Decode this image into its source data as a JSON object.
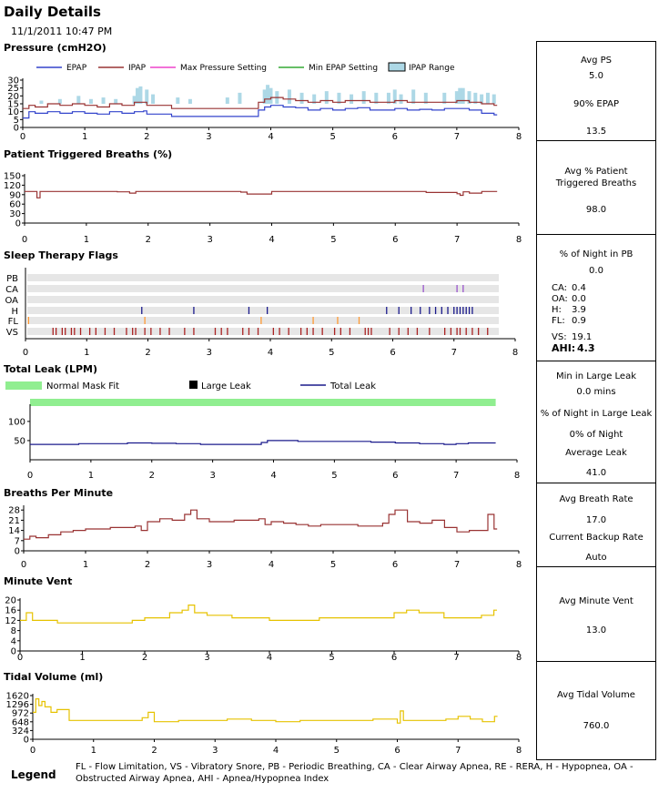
{
  "header": {
    "title": "Daily Details",
    "datetime": "11/1/2011 10:47 PM"
  },
  "chart_data": [
    {
      "id": "pressure",
      "type": "line",
      "title": "Pressure (cmH2O)",
      "x_ticks": [
        "0",
        "1",
        "2",
        "3",
        "4",
        "5",
        "6",
        "7",
        "8"
      ],
      "xlim": [
        0,
        8
      ],
      "y_ticks": [
        "30",
        "25",
        "20",
        "15",
        "10",
        "5",
        "0"
      ],
      "ylim": [
        0,
        30
      ],
      "legend": [
        "EPAP",
        "IPAP",
        "Max Pressure Setting",
        "Min EPAP Setting",
        "IPAP Range"
      ],
      "series": [
        {
          "name": "EPAP",
          "color": "#3344cc",
          "x": [
            0,
            0.1,
            0.2,
            0.4,
            0.6,
            0.8,
            1.0,
            1.2,
            1.4,
            1.6,
            1.8,
            1.95,
            2.0,
            2.4,
            2.8,
            3.2,
            3.6,
            3.8,
            3.9,
            4.0,
            4.2,
            4.4,
            4.6,
            4.8,
            5.0,
            5.2,
            5.4,
            5.6,
            5.8,
            6.0,
            6.2,
            6.4,
            6.6,
            6.8,
            7.0,
            7.2,
            7.4,
            7.6
          ],
          "values": [
            6,
            10,
            9,
            10,
            9,
            10,
            9,
            8.5,
            10,
            9,
            10,
            10.5,
            8.5,
            7,
            7,
            7,
            7,
            11,
            13,
            14,
            13,
            12.5,
            11,
            12,
            11,
            12,
            12.5,
            11,
            11,
            12,
            11,
            11.5,
            11,
            12,
            12,
            11,
            9,
            8
          ]
        },
        {
          "name": "IPAP",
          "color": "#993333",
          "x": [
            0,
            0.1,
            0.2,
            0.4,
            0.6,
            0.8,
            1.0,
            1.2,
            1.4,
            1.6,
            1.8,
            1.95,
            2.0,
            2.4,
            2.8,
            3.2,
            3.6,
            3.8,
            3.9,
            4.0,
            4.2,
            4.4,
            4.6,
            4.8,
            5.0,
            5.2,
            5.4,
            5.6,
            5.8,
            6.0,
            6.2,
            6.4,
            6.6,
            6.8,
            7.0,
            7.2,
            7.4,
            7.6
          ],
          "values": [
            12,
            14,
            13,
            15,
            14,
            15,
            14,
            13,
            15,
            14,
            16,
            16,
            14,
            12,
            12,
            12,
            12,
            16,
            18,
            19,
            18,
            17,
            16,
            17,
            16,
            17,
            17,
            16,
            16,
            17,
            16,
            16,
            16,
            16,
            17,
            16,
            15,
            14
          ]
        },
        {
          "name": "IPAP Range",
          "color": "#add8e6",
          "x": [
            0.3,
            0.6,
            0.9,
            1.1,
            1.3,
            1.5,
            1.8,
            1.85,
            1.9,
            2.0,
            2.1,
            2.5,
            2.7,
            3.3,
            3.5,
            3.9,
            3.95,
            4.0,
            4.1,
            4.3,
            4.5,
            4.7,
            4.9,
            5.1,
            5.3,
            5.5,
            5.7,
            5.9,
            6.0,
            6.1,
            6.3,
            6.5,
            6.8,
            7.0,
            7.05,
            7.1,
            7.2,
            7.3,
            7.4,
            7.5,
            7.6
          ],
          "values": [
            17,
            18,
            20,
            18,
            19,
            18,
            20,
            25,
            26,
            24,
            21,
            19,
            18,
            19,
            22,
            24,
            27,
            25,
            23,
            24,
            22,
            21,
            23,
            22,
            21,
            23,
            22,
            22,
            24,
            21,
            24,
            22,
            22,
            23,
            25,
            25,
            23,
            22,
            21,
            22,
            21
          ]
        }
      ]
    },
    {
      "id": "triggered",
      "type": "line",
      "title": "Patient Triggered Breaths (%)",
      "x_ticks": [
        "0",
        "1",
        "2",
        "3",
        "4",
        "5",
        "6",
        "7",
        "8"
      ],
      "xlim": [
        0,
        8
      ],
      "y_ticks": [
        "150",
        "120",
        "90",
        "60",
        "30",
        "0"
      ],
      "ylim": [
        0,
        150
      ],
      "series": [
        {
          "name": "Patient Triggered",
          "color": "#993333",
          "x": [
            0,
            0.15,
            0.2,
            0.25,
            0.5,
            1.0,
            1.5,
            1.7,
            1.8,
            2.0,
            2.5,
            3.0,
            3.5,
            3.6,
            4.0,
            4.5,
            5.0,
            5.5,
            6.0,
            6.5,
            7.0,
            7.05,
            7.1,
            7.2,
            7.4,
            7.6
          ],
          "values": [
            100,
            100,
            80,
            100,
            100,
            100,
            99,
            95,
            100,
            100,
            100,
            100,
            98,
            92,
            100,
            100,
            100,
            100,
            100,
            97,
            93,
            88,
            99,
            95,
            100,
            100
          ]
        }
      ]
    },
    {
      "id": "flags",
      "type": "scatter",
      "title": "Sleep Therapy Flags",
      "x_ticks": [
        "0",
        "1",
        "2",
        "3",
        "4",
        "5",
        "6",
        "7",
        "8"
      ],
      "xlim": [
        0,
        8
      ],
      "rows": [
        "PB",
        "CA",
        "OA",
        "H",
        "FL",
        "VS"
      ],
      "series": [
        {
          "name": "PB",
          "color": "#7744aa",
          "x": []
        },
        {
          "name": "CA",
          "color": "#9955cc",
          "x": [
            6.5,
            7.05,
            7.15
          ]
        },
        {
          "name": "OA",
          "color": "#7744aa",
          "x": []
        },
        {
          "name": "H",
          "color": "#1a1a8c",
          "x": [
            1.9,
            2.75,
            3.65,
            3.95,
            5.9,
            6.1,
            6.3,
            6.45,
            6.6,
            6.7,
            6.8,
            6.9,
            7.0,
            7.05,
            7.1,
            7.15,
            7.2,
            7.25,
            7.3
          ]
        },
        {
          "name": "FL",
          "color": "#ff9933",
          "x": [
            0.05,
            1.95,
            3.85,
            4.7,
            5.1,
            5.45
          ]
        },
        {
          "name": "VS",
          "color": "#aa2222",
          "x": [
            0.45,
            0.5,
            0.6,
            0.65,
            0.75,
            0.8,
            0.9,
            1.05,
            1.15,
            1.3,
            1.45,
            1.65,
            1.75,
            1.8,
            1.95,
            2.05,
            2.2,
            2.35,
            2.6,
            2.75,
            3.1,
            3.2,
            3.3,
            3.55,
            3.65,
            3.8,
            4.05,
            4.15,
            4.3,
            4.5,
            4.6,
            4.7,
            4.85,
            5.05,
            5.15,
            5.3,
            5.55,
            5.6,
            5.65,
            5.95,
            6.1,
            6.25,
            6.4,
            6.6,
            6.85,
            6.95,
            7.05,
            7.1,
            7.2,
            7.3,
            7.4,
            7.55
          ]
        }
      ]
    },
    {
      "id": "leak",
      "type": "line",
      "title": "Total Leak (LPM)",
      "x_ticks": [
        "0",
        "1",
        "2",
        "3",
        "4",
        "5",
        "6",
        "7",
        "8"
      ],
      "xlim": [
        0,
        8
      ],
      "y_ticks": [
        "100",
        "50"
      ],
      "ylim": [
        0,
        140
      ],
      "legend": [
        "Normal Mask Fit",
        "Large Leak",
        "Total Leak"
      ],
      "series": [
        {
          "name": "Total Leak",
          "color": "#1a1a8c",
          "x": [
            0,
            0.4,
            0.8,
            1.2,
            1.6,
            2.0,
            2.4,
            2.8,
            3.2,
            3.6,
            3.8,
            3.9,
            4.0,
            4.4,
            4.8,
            5.2,
            5.6,
            6.0,
            6.4,
            6.8,
            7.0,
            7.2,
            7.6
          ],
          "values": [
            40,
            40,
            42,
            42,
            44,
            43,
            42,
            40,
            40,
            40,
            45,
            50,
            50,
            48,
            48,
            48,
            46,
            44,
            42,
            40,
            42,
            44,
            44
          ]
        }
      ]
    },
    {
      "id": "bpm",
      "type": "line",
      "title": "Breaths Per Minute",
      "x_ticks": [
        "0",
        "1",
        "2",
        "3",
        "4",
        "5",
        "6",
        "7",
        "8"
      ],
      "xlim": [
        0,
        8
      ],
      "y_ticks": [
        "28",
        "21",
        "14",
        "7",
        "0"
      ],
      "ylim": [
        0,
        30
      ],
      "series": [
        {
          "name": "Breaths Per Minute",
          "color": "#993333",
          "x": [
            0,
            0.1,
            0.2,
            0.4,
            0.6,
            0.8,
            1.0,
            1.2,
            1.4,
            1.6,
            1.8,
            1.9,
            2.0,
            2.2,
            2.4,
            2.6,
            2.7,
            2.8,
            3.0,
            3.4,
            3.8,
            3.9,
            4.0,
            4.2,
            4.4,
            4.6,
            4.8,
            5.0,
            5.4,
            5.8,
            5.9,
            6.0,
            6.2,
            6.4,
            6.6,
            6.8,
            7.0,
            7.2,
            7.4,
            7.5,
            7.6
          ],
          "values": [
            8,
            10,
            9,
            11,
            13,
            14,
            15,
            15,
            16,
            16,
            17,
            14,
            20,
            22,
            21,
            25,
            28,
            22,
            20,
            21,
            22,
            18,
            20,
            19,
            18,
            17,
            18,
            18,
            17,
            19,
            25,
            28,
            20,
            19,
            21,
            16,
            13,
            14,
            14,
            25,
            15
          ]
        }
      ]
    },
    {
      "id": "mvent",
      "type": "line",
      "title": "Minute Vent",
      "x_ticks": [
        "0",
        "1",
        "2",
        "3",
        "4",
        "5",
        "6",
        "7",
        "8"
      ],
      "xlim": [
        0,
        8
      ],
      "y_ticks": [
        "20",
        "16",
        "12",
        "8",
        "4",
        "0"
      ],
      "ylim": [
        0,
        20
      ],
      "series": [
        {
          "name": "Minute Vent",
          "color": "#e6c200",
          "x": [
            0,
            0.1,
            0.2,
            0.6,
            1.0,
            1.4,
            1.8,
            2.0,
            2.2,
            2.4,
            2.6,
            2.7,
            2.8,
            3.0,
            3.4,
            3.8,
            4.0,
            4.4,
            4.8,
            5.2,
            5.6,
            6.0,
            6.2,
            6.4,
            6.8,
            7.2,
            7.4,
            7.6
          ],
          "values": [
            12,
            15,
            12,
            11,
            11,
            11,
            12,
            13,
            13,
            15,
            16,
            18,
            15,
            14,
            13,
            13,
            12,
            12,
            13,
            13,
            13,
            15,
            16,
            15,
            13,
            13,
            14,
            16
          ]
        }
      ]
    },
    {
      "id": "tidal",
      "type": "line",
      "title": "Tidal Volume (ml)",
      "x_ticks": [
        "0",
        "1",
        "2",
        "3",
        "4",
        "5",
        "6",
        "7",
        "8"
      ],
      "xlim": [
        0,
        8
      ],
      "y_ticks": [
        "1620",
        "1296",
        "972",
        "648",
        "324",
        "0"
      ],
      "ylim": [
        0,
        1620
      ],
      "series": [
        {
          "name": "Tidal Volume",
          "color": "#e6c200",
          "x": [
            0,
            0.05,
            0.1,
            0.15,
            0.2,
            0.3,
            0.4,
            0.6,
            1.0,
            1.5,
            1.8,
            1.9,
            2.0,
            2.4,
            2.8,
            3.2,
            3.6,
            4.0,
            4.4,
            4.8,
            5.2,
            5.6,
            6.0,
            6.05,
            6.1,
            6.4,
            6.8,
            7.0,
            7.2,
            7.4,
            7.6
          ],
          "values": [
            1000,
            1500,
            1250,
            1400,
            1200,
            1000,
            1100,
            700,
            700,
            700,
            800,
            1000,
            650,
            700,
            700,
            750,
            700,
            650,
            700,
            700,
            700,
            750,
            600,
            1050,
            700,
            700,
            750,
            850,
            750,
            650,
            850
          ]
        }
      ]
    }
  ],
  "stats": {
    "pressure": {
      "avg_ps_label": "Avg PS",
      "avg_ps_value": "5.0",
      "epap90_label": "90% EPAP",
      "epap90_value": "13.5"
    },
    "triggered": {
      "label_line1": "Avg % Patient",
      "label_line2": "Triggered Breaths",
      "value": "98.0"
    },
    "flags": {
      "pb_label": "% of Night in PB",
      "pb_value": "0.0",
      "rows": [
        {
          "label": "CA:",
          "value": "0.4"
        },
        {
          "label": "OA:",
          "value": "0.0"
        },
        {
          "label": "H:",
          "value": "3.9"
        },
        {
          "label": "FL:",
          "value": "0.9"
        }
      ],
      "vs_label": "VS:",
      "vs_value": "19.1",
      "ahi_label": "AHI:",
      "ahi_value": "4.3"
    },
    "leak": {
      "min_label": "Min in Large Leak",
      "min_value": "0.0 mins",
      "pct_label": "% of Night in Large Leak",
      "pct_value": "0% of Night",
      "avg_label": "Average Leak",
      "avg_value": "41.0"
    },
    "bpm": {
      "avg_label": "Avg Breath Rate",
      "avg_value": "17.0",
      "backup_label": "Current Backup Rate",
      "backup_value": "Auto"
    },
    "mvent": {
      "label": "Avg Minute Vent",
      "value": "13.0"
    },
    "tidal": {
      "label": "Avg Tidal Volume",
      "value": "760.0"
    }
  },
  "legend": {
    "title": "Legend",
    "text": "FL - Flow Limitation, VS - Vibratory Snore, PB - Periodic Breathing, CA - Clear Airway Apnea, RE - RERA, H - Hypopnea, OA - Obstructed Airway Apnea, AHI - Apnea/Hypopnea Index"
  },
  "colors": {
    "normal_mask_fit": "#90ee90",
    "large_leak": "#000000",
    "flag_track": "#e6e6e6"
  }
}
